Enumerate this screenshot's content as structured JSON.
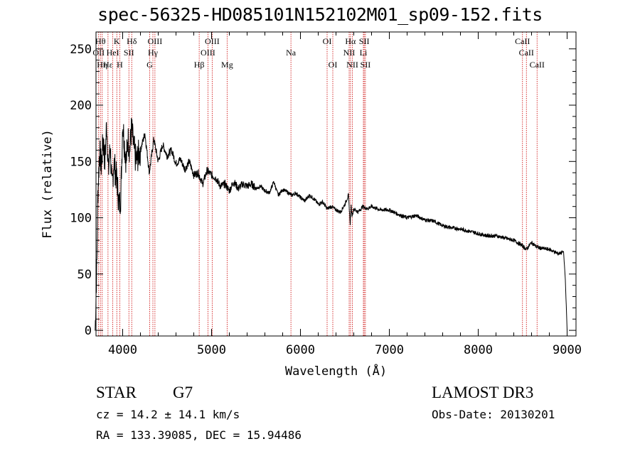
{
  "header": {
    "title": "spec-56325-HD085101N152102M01_sp09-152.fits"
  },
  "chart_data": {
    "type": "line",
    "title": "spec-56325-HD085101N152102M01_sp09-152.fits",
    "xlabel": "Wavelength (Å)",
    "ylabel": "Flux (relative)",
    "xlim": [
      3700,
      9100
    ],
    "ylim": [
      -5,
      265
    ],
    "xticks": [
      4000,
      5000,
      6000,
      7000,
      8000,
      9000
    ],
    "yticks": [
      0,
      50,
      100,
      150,
      200,
      250
    ],
    "grid": false,
    "series": [
      {
        "name": "spectrum",
        "x": [
          3690,
          3700,
          3710,
          3720,
          3740,
          3760,
          3780,
          3800,
          3820,
          3840,
          3860,
          3880,
          3900,
          3920,
          3940,
          3960,
          3980,
          4000,
          4020,
          4040,
          4060,
          4080,
          4100,
          4120,
          4150,
          4200,
          4250,
          4300,
          4350,
          4400,
          4450,
          4500,
          4550,
          4600,
          4650,
          4700,
          4750,
          4800,
          4850,
          4900,
          4950,
          5000,
          5050,
          5100,
          5150,
          5200,
          5250,
          5300,
          5350,
          5400,
          5450,
          5500,
          5550,
          5600,
          5650,
          5700,
          5750,
          5800,
          5850,
          5900,
          5950,
          6000,
          6050,
          6100,
          6150,
          6200,
          6250,
          6300,
          6350,
          6400,
          6450,
          6500,
          6540,
          6560,
          6570,
          6580,
          6600,
          6650,
          6700,
          6750,
          6800,
          6900,
          7000,
          7100,
          7200,
          7300,
          7400,
          7500,
          7600,
          7700,
          7800,
          7900,
          8000,
          8100,
          8200,
          8300,
          8400,
          8500,
          8540,
          8600,
          8660,
          8700,
          8800,
          8900,
          8960,
          8980,
          9000
        ],
        "values": [
          0,
          30,
          60,
          120,
          160,
          145,
          170,
          150,
          185,
          140,
          165,
          125,
          150,
          140,
          130,
          110,
          120,
          185,
          165,
          150,
          170,
          160,
          180,
          165,
          150,
          160,
          175,
          140,
          170,
          150,
          165,
          155,
          160,
          148,
          152,
          143,
          150,
          138,
          140,
          130,
          142,
          138,
          135,
          128,
          130,
          124,
          132,
          126,
          130,
          128,
          130,
          126,
          128,
          124,
          122,
          132,
          120,
          125,
          123,
          120,
          122,
          118,
          115,
          120,
          117,
          112,
          114,
          108,
          110,
          107,
          105,
          112,
          120,
          95,
          110,
          102,
          108,
          105,
          110,
          108,
          110,
          107,
          107,
          103,
          100,
          102,
          98,
          97,
          93,
          91,
          90,
          88,
          86,
          84,
          84,
          82,
          80,
          75,
          72,
          78,
          74,
          73,
          72,
          68,
          70,
          45,
          0
        ]
      }
    ],
    "line_markers": [
      {
        "wl": 3730,
        "label": "OII",
        "row": 2
      },
      {
        "wl": 3750,
        "label": "Hθ",
        "row": 1
      },
      {
        "wl": 3770,
        "label": "Hη",
        "row": 3
      },
      {
        "wl": 3835,
        "label": "Hε",
        "row": 3
      },
      {
        "wl": 3889,
        "label": "HeI",
        "row": 2
      },
      {
        "wl": 3934,
        "label": "K",
        "row": 1
      },
      {
        "wl": 3968,
        "label": "H",
        "row": 3
      },
      {
        "wl": 4070,
        "label": "SII",
        "row": 2
      },
      {
        "wl": 4102,
        "label": "Hδ",
        "row": 1
      },
      {
        "wl": 4304,
        "label": "G",
        "row": 3
      },
      {
        "wl": 4340,
        "label": "Hγ",
        "row": 2
      },
      {
        "wl": 4363,
        "label": "OIII",
        "row": 1
      },
      {
        "wl": 4861,
        "label": "Hβ",
        "row": 3
      },
      {
        "wl": 4959,
        "label": "OIII",
        "row": 2
      },
      {
        "wl": 5007,
        "label": "OIII",
        "row": 1
      },
      {
        "wl": 5175,
        "label": "Mg",
        "row": 3
      },
      {
        "wl": 5893,
        "label": "Na",
        "row": 2
      },
      {
        "wl": 6300,
        "label": "OI",
        "row": 1
      },
      {
        "wl": 6364,
        "label": "OI",
        "row": 3
      },
      {
        "wl": 6548,
        "label": "NII",
        "row": 2
      },
      {
        "wl": 6563,
        "label": "Hα",
        "row": 1
      },
      {
        "wl": 6584,
        "label": "NII",
        "row": 3
      },
      {
        "wl": 6708,
        "label": "Li",
        "row": 2
      },
      {
        "wl": 6717,
        "label": "SII",
        "row": 1
      },
      {
        "wl": 6731,
        "label": "SII",
        "row": 3
      },
      {
        "wl": 8498,
        "label": "CaII",
        "row": 1
      },
      {
        "wl": 8542,
        "label": "CaII",
        "row": 2
      },
      {
        "wl": 8662,
        "label": "CaII",
        "row": 3
      }
    ]
  },
  "info": {
    "star_type": "STAR",
    "star_class": "G7",
    "survey": "LAMOST DR3",
    "cz": "cz = 14.2 ± 14.1 km/s",
    "obs_date": "Obs-Date: 20130201",
    "radec": "RA = 133.39085, DEC =  15.94486"
  },
  "colors": {
    "line_marker": "#cc0000",
    "spectrum": "#000000",
    "axes": "#000000"
  }
}
